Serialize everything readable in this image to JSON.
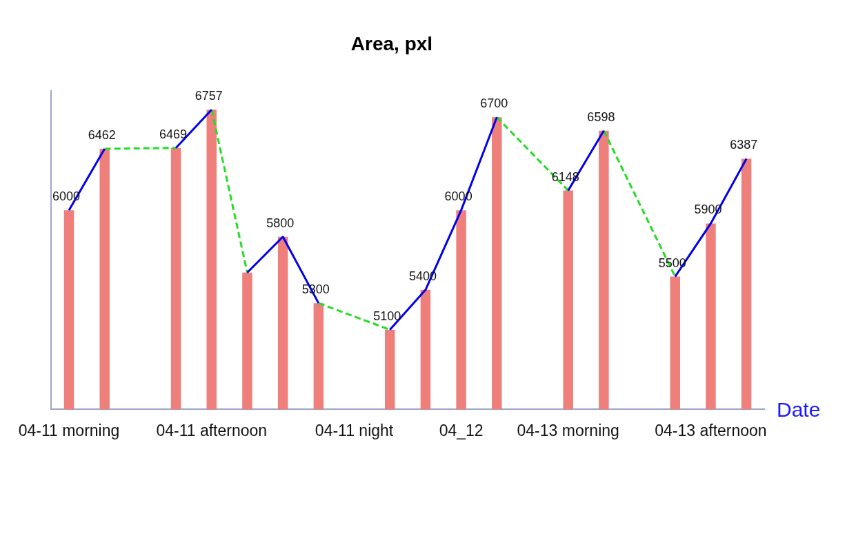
{
  "chart_data": {
    "type": "bar",
    "title": "Area, pxl",
    "xlabel": "Date",
    "categories": [
      "04-11 morning",
      null,
      null,
      null,
      "04-11 afternoon",
      null,
      null,
      null,
      "04-11 night",
      null,
      null,
      "04_12",
      null,
      null,
      "04-13 morning",
      null,
      null,
      null,
      "04-13 afternoon",
      null
    ],
    "ylim": [
      4500,
      6900
    ],
    "grid": false,
    "legend": false,
    "series": [
      {
        "color": "#ef7f7a",
        "values": [
          6000,
          6462,
          null,
          6469,
          6757,
          5530,
          5800,
          5300,
          null,
          5100,
          5400,
          6000,
          6700,
          null,
          6148,
          6598,
          null,
          5500,
          5900,
          6387
        ],
        "value_labels": [
          "6000",
          "6462",
          null,
          "6469",
          "6757",
          null,
          "5800",
          "5300",
          null,
          "5100",
          "5400",
          "6000",
          "6700",
          null,
          "6148",
          "6598",
          null,
          "5500",
          "5900",
          "6387"
        ]
      },
      {
        "type": "line",
        "color": "#0000ee",
        "line_style": "solid",
        "values": [
          6000,
          6462,
          null,
          null,
          null,
          null,
          null,
          null,
          null,
          null,
          null,
          null,
          null,
          null,
          null,
          null,
          null,
          null,
          null,
          null
        ]
      },
      {
        "type": "line",
        "color": "#0000ee",
        "line_style": "solid",
        "values": [
          null,
          null,
          null,
          6469,
          6757,
          null,
          null,
          null,
          null,
          null,
          null,
          null,
          null,
          null,
          null,
          null,
          null,
          null,
          null,
          null
        ]
      },
      {
        "type": "line",
        "color": "#0000ee",
        "line_style": "solid",
        "values": [
          null,
          null,
          null,
          null,
          null,
          5530,
          5800,
          5300,
          null,
          null,
          null,
          null,
          null,
          null,
          null,
          null,
          null,
          null,
          null,
          null
        ]
      },
      {
        "type": "line",
        "color": "#0000ee",
        "line_style": "solid",
        "values": [
          null,
          null,
          null,
          null,
          null,
          null,
          null,
          null,
          null,
          5100,
          5400,
          6000,
          6700,
          null,
          null,
          null,
          null,
          null,
          null,
          null
        ]
      },
      {
        "type": "line",
        "color": "#0000ee",
        "line_style": "solid",
        "values": [
          null,
          null,
          null,
          null,
          null,
          null,
          null,
          null,
          null,
          null,
          null,
          null,
          null,
          null,
          6148,
          6598,
          null,
          null,
          null,
          null
        ]
      },
      {
        "type": "line",
        "color": "#0000ee",
        "line_style": "solid",
        "values": [
          null,
          null,
          null,
          null,
          null,
          null,
          null,
          null,
          null,
          null,
          null,
          null,
          null,
          null,
          null,
          null,
          null,
          5500,
          5900,
          6387
        ]
      },
      {
        "type": "line",
        "color": "#22dd22",
        "line_style": "dashed",
        "values": [
          null,
          6462,
          null,
          6469,
          null,
          null,
          null,
          null,
          null,
          null,
          null,
          null,
          null,
          null,
          null,
          null,
          null,
          null,
          null,
          null
        ]
      },
      {
        "type": "line",
        "color": "#22dd22",
        "line_style": "dashed",
        "values": [
          null,
          null,
          null,
          null,
          6757,
          5530,
          null,
          null,
          null,
          null,
          null,
          null,
          null,
          null,
          null,
          null,
          null,
          null,
          null,
          null
        ]
      },
      {
        "type": "line",
        "color": "#22dd22",
        "line_style": "dashed",
        "values": [
          null,
          null,
          null,
          null,
          null,
          null,
          null,
          5300,
          null,
          5100,
          null,
          null,
          null,
          null,
          null,
          null,
          null,
          null,
          null,
          null
        ]
      },
      {
        "type": "line",
        "color": "#22dd22",
        "line_style": "dashed",
        "values": [
          null,
          null,
          null,
          null,
          null,
          null,
          null,
          null,
          null,
          null,
          null,
          null,
          6700,
          null,
          6148,
          null,
          null,
          null,
          null,
          null
        ]
      },
      {
        "type": "line",
        "color": "#22dd22",
        "line_style": "dashed",
        "values": [
          null,
          null,
          null,
          null,
          null,
          null,
          null,
          null,
          null,
          null,
          null,
          null,
          null,
          null,
          null,
          6598,
          null,
          5500,
          null,
          null
        ]
      }
    ]
  }
}
